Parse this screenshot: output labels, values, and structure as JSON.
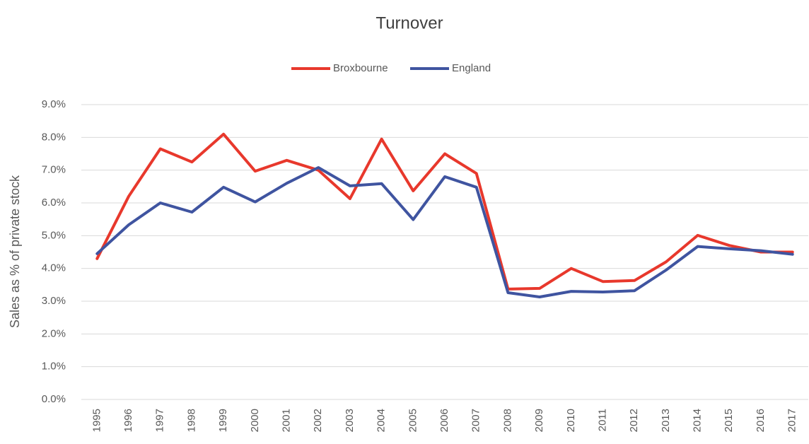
{
  "chart_data": {
    "type": "line",
    "title": "Turnover",
    "y_label": "Sales as % of private stock",
    "categories": [
      "1995",
      "1996",
      "1997",
      "1998",
      "1999",
      "2000",
      "2001",
      "2002",
      "2003",
      "2004",
      "2005",
      "2006",
      "2007",
      "2008",
      "2009",
      "2010",
      "2011",
      "2012",
      "2013",
      "2014",
      "2015",
      "2016",
      "2017"
    ],
    "series": [
      {
        "name": "Broxbourne",
        "color": "#e8382c",
        "values": [
          4.3,
          6.2,
          7.65,
          7.25,
          8.1,
          6.97,
          7.3,
          7.0,
          6.13,
          7.95,
          6.37,
          7.5,
          6.9,
          3.37,
          3.39,
          4.0,
          3.6,
          3.63,
          4.2,
          5.01,
          4.7,
          4.5,
          4.5
        ]
      },
      {
        "name": "England",
        "color": "#3f54a0",
        "values": [
          4.45,
          5.33,
          6.0,
          5.72,
          6.48,
          6.03,
          6.6,
          7.08,
          6.52,
          6.59,
          5.49,
          6.8,
          6.48,
          3.26,
          3.13,
          3.3,
          3.28,
          3.32,
          3.95,
          4.67,
          4.6,
          4.54,
          4.43
        ]
      }
    ],
    "ylim": [
      0,
      9
    ],
    "yticks": [
      {
        "value": 0,
        "label": "0.0%"
      },
      {
        "value": 1,
        "label": "1.0%"
      },
      {
        "value": 2,
        "label": "2.0%"
      },
      {
        "value": 3,
        "label": "3.0%"
      },
      {
        "value": 4,
        "label": "4.0%"
      },
      {
        "value": 5,
        "label": "5.0%"
      },
      {
        "value": 6,
        "label": "6.0%"
      },
      {
        "value": 7,
        "label": "7.0%"
      },
      {
        "value": 8,
        "label": "8.0%"
      },
      {
        "value": 9,
        "label": "9.0%"
      }
    ],
    "grid": true,
    "legend": "top"
  }
}
